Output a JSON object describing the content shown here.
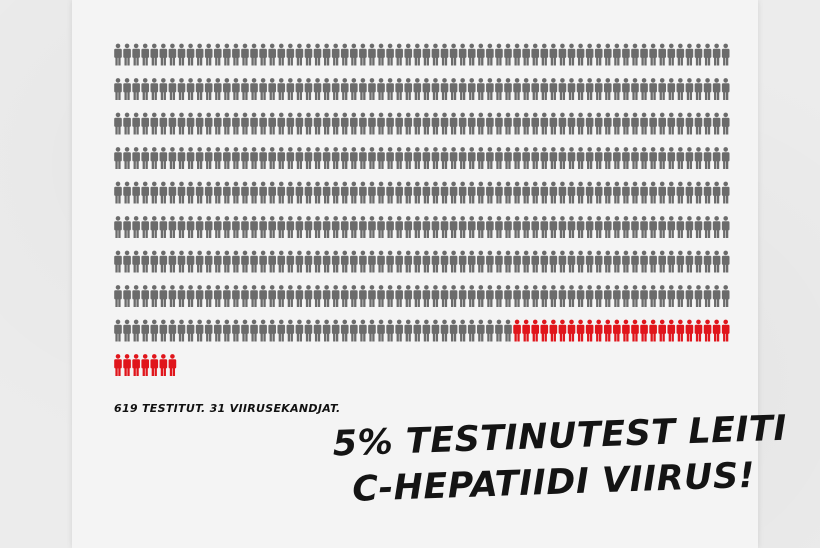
{
  "colors": {
    "tested_person": "#6b6b6b",
    "virus_carrier": "#e0151b",
    "text": "#141414"
  },
  "icons": {
    "person": "person-icon"
  },
  "chart_data": {
    "type": "pictogram",
    "values": {
      "tested": 619,
      "virus_carriers": 31
    },
    "caption": "619 TESTITUT. 31 VIIRUSEKANDJAT.",
    "headline": [
      "5% TESTINUTEST LEITI",
      "C-HEPATIIDI VIIRUS!"
    ]
  }
}
